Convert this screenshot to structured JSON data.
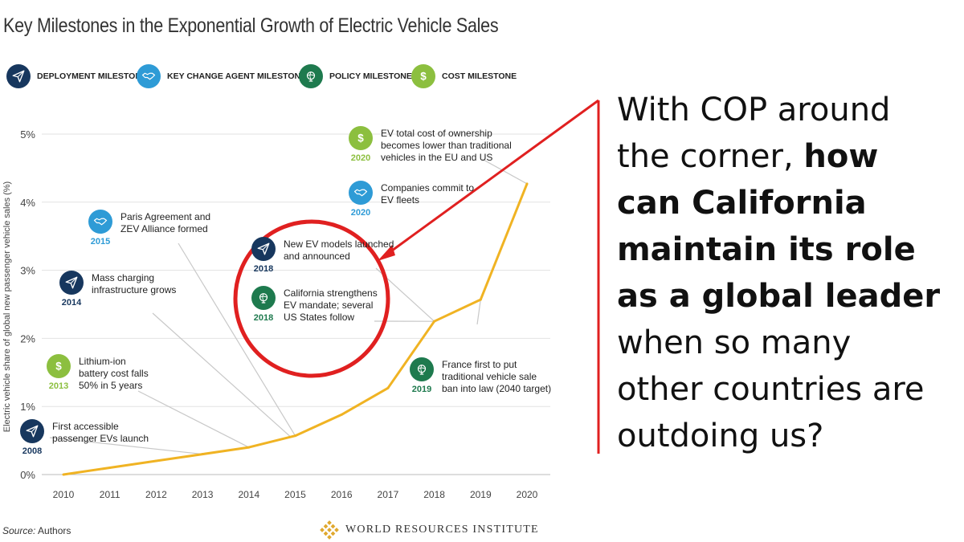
{
  "title": "Key Milestones in the Exponential Growth of Electric Vehicle Sales",
  "legend": [
    {
      "label": "DEPLOYMENT MILESTONE",
      "icon": "paper-plane-icon",
      "color": "#17375e"
    },
    {
      "label": "KEY CHANGE AGENT MILESTONE",
      "icon": "handshake-icon",
      "color": "#2e9bd6"
    },
    {
      "label": "POLICY MILESTONE",
      "icon": "globe-icon",
      "color": "#1e7a4e"
    },
    {
      "label": "COST MILESTONE",
      "icon": "dollar-icon",
      "color": "#8cbf3f"
    }
  ],
  "milestones": [
    {
      "year": "2008",
      "type": "deploy",
      "lines": [
        "First accessible",
        "passenger EVs launch"
      ]
    },
    {
      "year": "2013",
      "type": "cost",
      "lines": [
        "Lithium-ion",
        "battery cost falls",
        "50% in 5 years"
      ]
    },
    {
      "year": "2014",
      "type": "deploy",
      "lines": [
        "Mass charging",
        "infrastructure grows"
      ]
    },
    {
      "year": "2015",
      "type": "agent",
      "lines": [
        "Paris Agreement and",
        "ZEV Alliance formed"
      ]
    },
    {
      "year": "2018",
      "type": "deploy",
      "lines": [
        "New EV models launched",
        "and announced"
      ]
    },
    {
      "year": "2018",
      "type": "policy",
      "lines": [
        "California strengthens",
        "EV mandate; several",
        "US States follow"
      ]
    },
    {
      "year": "2020",
      "type": "cost",
      "lines": [
        "EV total cost of ownership",
        "becomes lower than traditional",
        "vehicles in the EU and US"
      ]
    },
    {
      "year": "2020",
      "type": "agent",
      "lines": [
        "Companies commit to",
        "EV fleets"
      ]
    },
    {
      "year": "2019",
      "type": "policy",
      "lines": [
        "France first to put",
        "traditional vehicle sale",
        "ban into law (2040 target)"
      ]
    }
  ],
  "chart_data": {
    "type": "line",
    "ylabel": "Electric vehicle share of global new passenger vehicle sales (%)",
    "x": [
      2010,
      2011,
      2012,
      2013,
      2014,
      2015,
      2016,
      2017,
      2018,
      2019,
      2020
    ],
    "series": [
      {
        "values": [
          0.0,
          0.1,
          0.2,
          0.3,
          0.4,
          0.57,
          0.88,
          1.27,
          2.25,
          2.57,
          4.27
        ],
        "color": "#f0b323"
      }
    ],
    "x_tick_labels": [
      "2010",
      "2011",
      "2012",
      "2013",
      "2014",
      "2015",
      "2016",
      "2017",
      "2018",
      "2019",
      "2020"
    ],
    "y_tick_labels": [
      "0%",
      "1%",
      "2%",
      "3%",
      "4%",
      "5%"
    ],
    "ylim": [
      0,
      5
    ],
    "grid": true
  },
  "source_label": "Source:",
  "source_value": "Authors",
  "org": "WORLD RESOURCES INSTITUTE",
  "annotation_color": "#e02020",
  "callout": {
    "line1": "With COP around",
    "line2_normal": "the corner,",
    "line2_bold": "how",
    "line3": "can California",
    "line4": "maintain its role",
    "line5": "as a global leader",
    "line6": "when so many",
    "line7": "other countries are",
    "line8": "outdoing us?"
  }
}
